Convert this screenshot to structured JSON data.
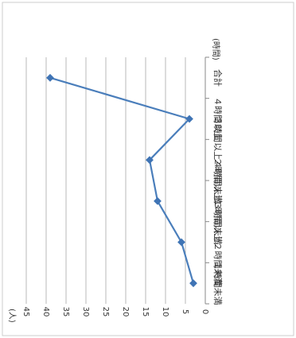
{
  "chart_data": {
    "type": "line",
    "orientation": "rotated-90-clockwise",
    "categories": [
      "１時間未満",
      "１時間以上２時間未満",
      "２時間以上３時間未満",
      "３時間以上４時間未満",
      "４時間以上",
      "合計"
    ],
    "series": [
      {
        "values": [
          3,
          6,
          12,
          14,
          4,
          39
        ]
      }
    ],
    "y_unit": "(人)",
    "x_unit": "(時間)",
    "ylim": [
      0,
      45
    ],
    "y_ticks": [
      0,
      5,
      10,
      15,
      20,
      25,
      30,
      35,
      40,
      45
    ],
    "grid": true,
    "legend": "none",
    "colors": {
      "line": "#4a7ebb",
      "marker": "#3f74b5",
      "grid": "#b8b8b8",
      "border": "#cccccc",
      "text": "#333333"
    }
  }
}
